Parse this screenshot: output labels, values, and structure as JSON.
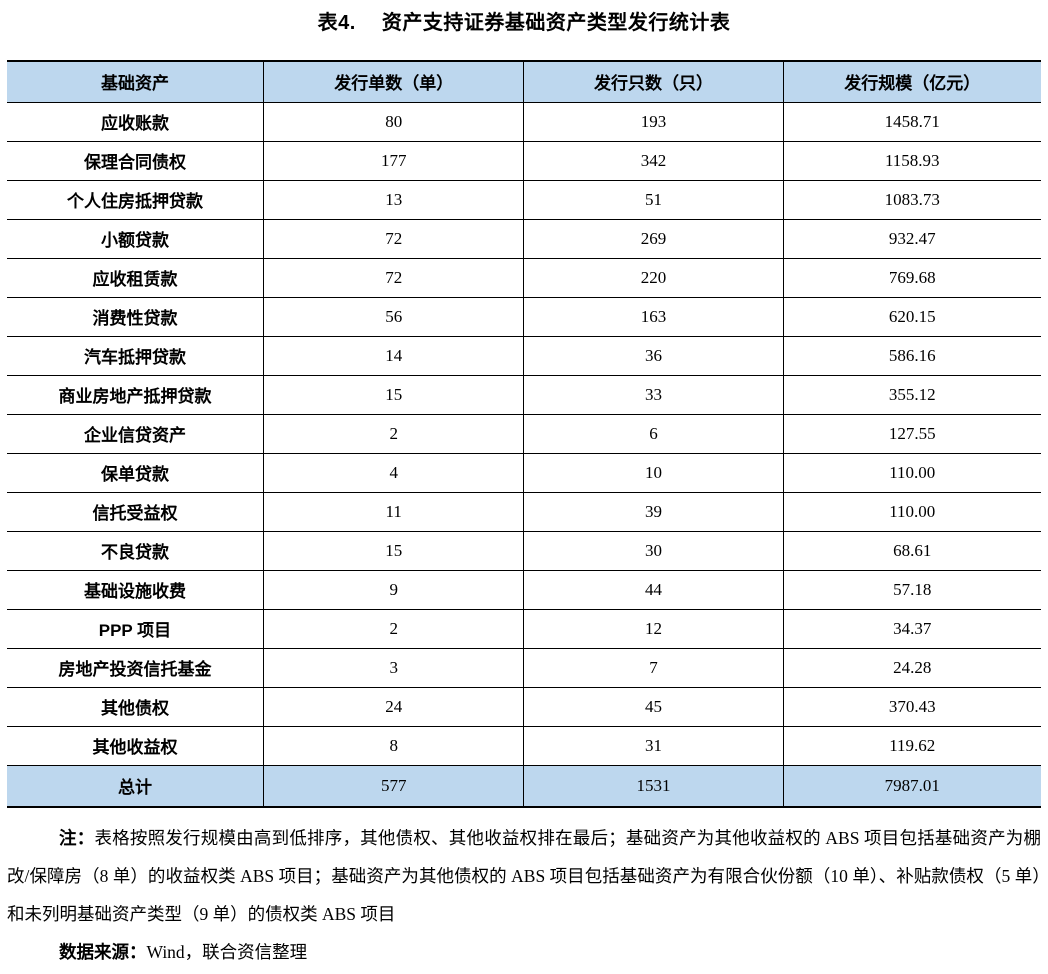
{
  "page": {
    "title_label": "表4.",
    "title_text": "资产支持证券基础资产类型发行统计表"
  },
  "table": {
    "headers": [
      "基础资产",
      "发行单数（单）",
      "发行只数（只）",
      "发行规模（亿元）"
    ],
    "rows": [
      {
        "asset": "应收账款",
        "deals": "80",
        "count": "193",
        "scale": "1458.71"
      },
      {
        "asset": "保理合同债权",
        "deals": "177",
        "count": "342",
        "scale": "1158.93"
      },
      {
        "asset": "个人住房抵押贷款",
        "deals": "13",
        "count": "51",
        "scale": "1083.73"
      },
      {
        "asset": "小额贷款",
        "deals": "72",
        "count": "269",
        "scale": "932.47"
      },
      {
        "asset": "应收租赁款",
        "deals": "72",
        "count": "220",
        "scale": "769.68"
      },
      {
        "asset": "消费性贷款",
        "deals": "56",
        "count": "163",
        "scale": "620.15"
      },
      {
        "asset": "汽车抵押贷款",
        "deals": "14",
        "count": "36",
        "scale": "586.16"
      },
      {
        "asset": "商业房地产抵押贷款",
        "deals": "15",
        "count": "33",
        "scale": "355.12"
      },
      {
        "asset": "企业信贷资产",
        "deals": "2",
        "count": "6",
        "scale": "127.55"
      },
      {
        "asset": "保单贷款",
        "deals": "4",
        "count": "10",
        "scale": "110.00"
      },
      {
        "asset": "信托受益权",
        "deals": "11",
        "count": "39",
        "scale": "110.00"
      },
      {
        "asset": "不良贷款",
        "deals": "15",
        "count": "30",
        "scale": "68.61"
      },
      {
        "asset": "基础设施收费",
        "deals": "9",
        "count": "44",
        "scale": "57.18"
      },
      {
        "asset": "PPP 项目",
        "deals": "2",
        "count": "12",
        "scale": "34.37"
      },
      {
        "asset": "房地产投资信托基金",
        "deals": "3",
        "count": "7",
        "scale": "24.28"
      },
      {
        "asset": "其他债权",
        "deals": "24",
        "count": "45",
        "scale": "370.43"
      },
      {
        "asset": "其他收益权",
        "deals": "8",
        "count": "31",
        "scale": "119.62"
      }
    ],
    "total": {
      "label": "总计",
      "deals": "577",
      "count": "1531",
      "scale": "7987.01"
    }
  },
  "notes": {
    "note_prefix": "注：",
    "note_text": "表格按照发行规模由高到低排序，其他债权、其他收益权排在最后；基础资产为其他收益权的 ABS 项目包括基础资产为棚改/保障房（8 单）的收益权类 ABS 项目；基础资产为其他债权的 ABS 项目包括基础资产为有限合伙份额（10 单）、补贴款债权（5 单）和未列明基础资产类型（9 单）的债权类 ABS 项目",
    "source_prefix": "数据来源：",
    "source_text": "Wind，联合资信整理"
  },
  "colors": {
    "header_bg": "#BDD7EE",
    "border": "#000000",
    "text": "#000000"
  }
}
